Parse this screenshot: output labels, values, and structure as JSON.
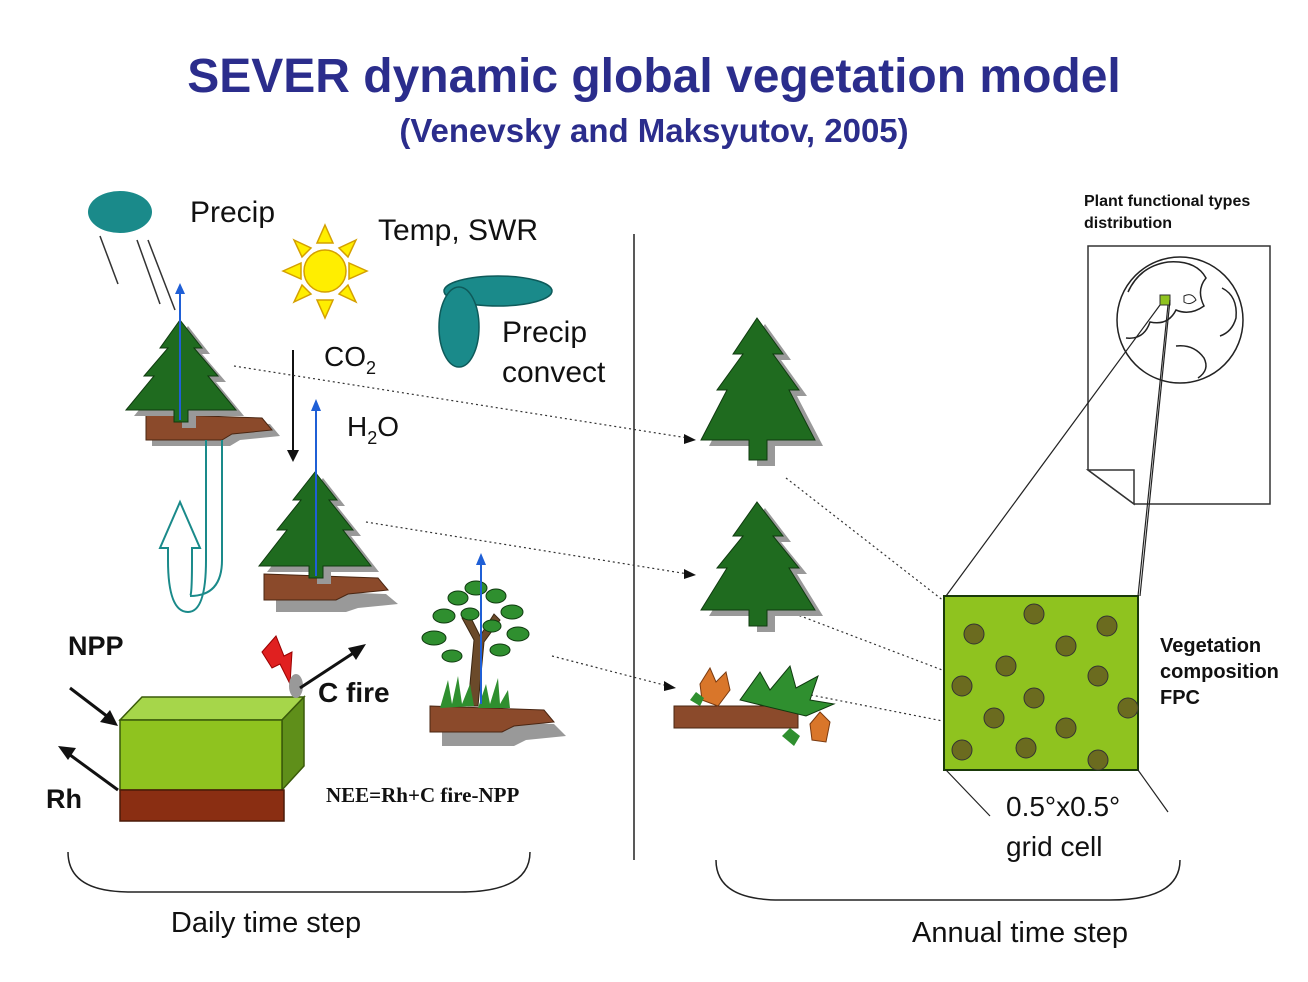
{
  "title": "SEVER dynamic global vegetation model",
  "subtitle": "(Venevsky and Maksyutov, 2005)",
  "labels": {
    "precip": "Precip",
    "temp_swr": "Temp, SWR",
    "precip_convect_1": "Precip",
    "precip_convect_2": "convect",
    "co2_base": "CO",
    "co2_sub": "2",
    "h2o_h": "H",
    "h2o_sub": "2",
    "h2o_o": "O",
    "npp": "NPP",
    "rh": "Rh",
    "c_fire": "C fire",
    "nee": "NEE=Rh+C fire-NPP",
    "daily": "Daily time step",
    "annual": "Annual time step",
    "pft_1": "Plant functional types",
    "pft_2": "distribution",
    "veg_1": "Vegetation",
    "veg_2": "composition",
    "veg_3": "FPC",
    "grid_1": "0.5°x0.5°",
    "grid_2": "grid cell"
  },
  "colors": {
    "title": "#2b2d8c",
    "tree": "#1f6b1f",
    "soil": "#8b4a2b",
    "cloud": "#1a8a8a",
    "sun": "#ffee00",
    "grid_cell": "#8fc31f",
    "grid_dot": "#6b6b1f",
    "box_top": "#a6d64a",
    "box_front": "#8fc31f",
    "box_side": "#5f8f1a",
    "box_soil": "#8a2e12",
    "arrow_blue": "#1f5fd6",
    "flash": "#e02020"
  }
}
